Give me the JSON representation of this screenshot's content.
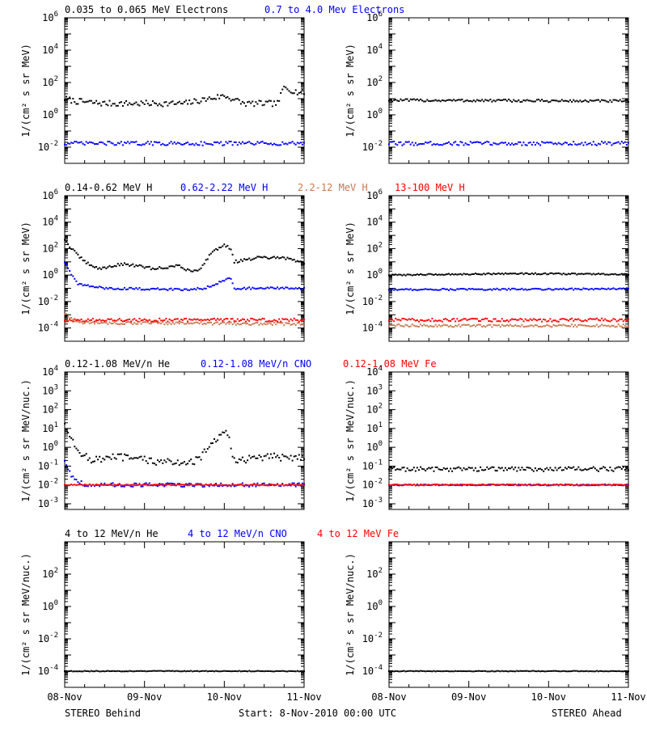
{
  "colors": {
    "black": "#000000",
    "blue": "#0000ff",
    "tan": "#c87850",
    "red": "#ff0000"
  },
  "footer": {
    "left": "STEREO Behind",
    "center": "Start:  8-Nov-2010 00:00 UTC",
    "right": "STEREO Ahead"
  },
  "chart_data": [
    {
      "type": "scatter",
      "id": "electrons-behind",
      "spacecraft": "STEREO Behind",
      "ylabel": "1/(cm² s sr MeV)",
      "yscale": "log",
      "ylim": [
        0.001,
        1000000
      ],
      "yticks": [
        {
          "v": 0.01,
          "e": "-2"
        },
        {
          "v": 1,
          "e": "0"
        },
        {
          "v": 100,
          "e": "2"
        },
        {
          "v": 10000,
          "e": "4"
        },
        {
          "v": 1000000,
          "e": "6"
        }
      ],
      "xlim": [
        "2010-11-08",
        "2010-11-11"
      ],
      "x_ticks": [
        "08-Nov",
        "09-Nov",
        "10-Nov",
        "11-Nov"
      ],
      "show_xtick_labels": false,
      "series": [
        {
          "name": "0.035 to 0.065 MeV Electrons",
          "color": "black",
          "noise": 0.18,
          "x": [
            "2010-11-08 00:00",
            "2010-11-08 03:00",
            "2010-11-08 12:00",
            "2010-11-09 00:00",
            "2010-11-09 12:00",
            "2010-11-10 00:00",
            "2010-11-10 06:00",
            "2010-11-10 12:00",
            "2010-11-10 16:00",
            "2010-11-10 18:00",
            "2010-11-10 22:00",
            "2010-11-11 00:00"
          ],
          "y": [
            10,
            7,
            5,
            5,
            5,
            15,
            5,
            5,
            5,
            50,
            25,
            25
          ]
        },
        {
          "name": "0.7 to 4.0 Mev Electrons",
          "color": "blue",
          "noise": 0.12,
          "x": [
            "2010-11-08 00:00",
            "2010-11-11 00:00"
          ],
          "y": [
            0.017,
            0.017
          ]
        }
      ]
    },
    {
      "type": "scatter",
      "id": "electrons-ahead",
      "spacecraft": "STEREO Ahead",
      "ylabel": "1/(cm² s sr MeV)",
      "yscale": "log",
      "ylim": [
        0.001,
        1000000
      ],
      "yticks": [
        {
          "v": 0.01,
          "e": "-2"
        },
        {
          "v": 1,
          "e": "0"
        },
        {
          "v": 100,
          "e": "2"
        },
        {
          "v": 10000,
          "e": "4"
        },
        {
          "v": 1000000,
          "e": "6"
        }
      ],
      "xlim": [
        "2010-11-08",
        "2010-11-11"
      ],
      "x_ticks": [
        "08-Nov",
        "09-Nov",
        "10-Nov",
        "11-Nov"
      ],
      "show_xtick_labels": false,
      "series": [
        {
          "color": "black",
          "noise": 0.08,
          "x": [
            "2010-11-08 00:00",
            "2010-11-11 00:00"
          ],
          "y": [
            8,
            7
          ]
        },
        {
          "color": "blue",
          "noise": 0.12,
          "x": [
            "2010-11-08 00:00",
            "2010-11-11 00:00"
          ],
          "y": [
            0.017,
            0.017
          ]
        }
      ]
    },
    {
      "type": "scatter",
      "id": "protons-behind",
      "spacecraft": "STEREO Behind",
      "ylabel": "1/(cm² s sr MeV)",
      "yscale": "log",
      "ylim": [
        1e-05,
        1000000
      ],
      "yticks": [
        {
          "v": 0.0001,
          "e": "-4"
        },
        {
          "v": 0.01,
          "e": "-2"
        },
        {
          "v": 1,
          "e": "0"
        },
        {
          "v": 100,
          "e": "2"
        },
        {
          "v": 10000,
          "e": "4"
        },
        {
          "v": 1000000,
          "e": "6"
        }
      ],
      "xlim": [
        "2010-11-08",
        "2010-11-11"
      ],
      "x_ticks": [
        "08-Nov",
        "09-Nov",
        "10-Nov",
        "11-Nov"
      ],
      "show_xtick_labels": false,
      "series": [
        {
          "name": "0.14-0.62 MeV H",
          "color": "black",
          "noise": 0.1,
          "x": [
            "2010-11-08 00:00",
            "2010-11-08 02:00",
            "2010-11-08 06:00",
            "2010-11-08 10:00",
            "2010-11-08 18:00",
            "2010-11-09 03:00",
            "2010-11-09 10:00",
            "2010-11-09 14:00",
            "2010-11-09 17:00",
            "2010-11-09 20:00",
            "2010-11-10 00:00",
            "2010-11-10 02:00",
            "2010-11-10 03:00",
            "2010-11-10 10:00",
            "2010-11-10 18:00",
            "2010-11-11 00:00"
          ],
          "y": [
            500,
            100,
            10,
            3,
            7,
            3,
            5,
            2,
            3,
            50,
            200,
            100,
            10,
            20,
            20,
            8
          ]
        },
        {
          "name": "0.62-2.22 MeV H",
          "color": "blue",
          "noise": 0.08,
          "x": [
            "2010-11-08 00:00",
            "2010-11-08 01:30",
            "2010-11-08 04:00",
            "2010-11-08 12:00",
            "2010-11-09 12:00",
            "2010-11-09 18:00",
            "2010-11-10 00:00",
            "2010-11-10 02:00",
            "2010-11-10 03:00",
            "2010-11-11 00:00"
          ],
          "y": [
            10,
            2,
            0.2,
            0.1,
            0.08,
            0.1,
            0.4,
            0.6,
            0.1,
            0.1
          ]
        },
        {
          "name": "2.2-12 MeV H",
          "color": "tan",
          "noise": 0.1,
          "x": [
            "2010-11-08 00:00",
            "2010-11-08 04:00",
            "2010-11-11 00:00"
          ],
          "y": [
            0.0012,
            0.00025,
            0.0002
          ]
        },
        {
          "name": "13-100 MeV H",
          "color": "red",
          "noise": 0.12,
          "x": [
            "2010-11-08 00:00",
            "2010-11-11 00:00"
          ],
          "y": [
            0.0004,
            0.0004
          ]
        }
      ]
    },
    {
      "type": "scatter",
      "id": "protons-ahead",
      "spacecraft": "STEREO Ahead",
      "ylabel": "1/(cm² s sr MeV)",
      "yscale": "log",
      "ylim": [
        1e-05,
        1000000
      ],
      "yticks": [
        {
          "v": 0.0001,
          "e": "-4"
        },
        {
          "v": 0.01,
          "e": "-2"
        },
        {
          "v": 1,
          "e": "0"
        },
        {
          "v": 100,
          "e": "2"
        },
        {
          "v": 10000,
          "e": "4"
        },
        {
          "v": 1000000,
          "e": "6"
        }
      ],
      "xlim": [
        "2010-11-08",
        "2010-11-11"
      ],
      "x_ticks": [
        "08-Nov",
        "09-Nov",
        "10-Nov",
        "11-Nov"
      ],
      "show_xtick_labels": false,
      "series": [
        {
          "color": "black",
          "noise": 0.05,
          "x": [
            "2010-11-08 00:00",
            "2010-11-09 12:00",
            "2010-11-10 12:00",
            "2010-11-11 00:00"
          ],
          "y": [
            1,
            1.3,
            1.2,
            1.1
          ]
        },
        {
          "color": "blue",
          "noise": 0.06,
          "x": [
            "2010-11-08 00:00",
            "2010-11-11 00:00"
          ],
          "y": [
            0.08,
            0.09
          ]
        },
        {
          "color": "tan",
          "noise": 0.1,
          "x": [
            "2010-11-08 00:00",
            "2010-11-11 00:00"
          ],
          "y": [
            0.00015,
            0.00015
          ]
        },
        {
          "color": "red",
          "noise": 0.12,
          "x": [
            "2010-11-08 00:00",
            "2010-11-11 00:00"
          ],
          "y": [
            0.0004,
            0.0004
          ]
        }
      ]
    },
    {
      "type": "scatter",
      "id": "ions-low-behind",
      "spacecraft": "STEREO Behind",
      "ylabel": "1/(cm² s sr MeV/nuc.)",
      "yscale": "log",
      "ylim": [
        0.0005,
        10000
      ],
      "yticks": [
        {
          "v": 0.001,
          "e": "-3"
        },
        {
          "v": 0.01,
          "e": "-2"
        },
        {
          "v": 0.1,
          "e": "-1"
        },
        {
          "v": 1,
          "e": "0"
        },
        {
          "v": 10,
          "e": "1"
        },
        {
          "v": 100,
          "e": "2"
        },
        {
          "v": 1000,
          "e": "3"
        },
        {
          "v": 10000,
          "e": "4"
        }
      ],
      "xlim": [
        "2010-11-08",
        "2010-11-11"
      ],
      "x_ticks": [
        "08-Nov",
        "09-Nov",
        "10-Nov",
        "11-Nov"
      ],
      "show_xtick_labels": false,
      "series": [
        {
          "name": "0.12-1.08 MeV/n He",
          "color": "black",
          "noise": 0.2,
          "x": [
            "2010-11-08 00:00",
            "2010-11-08 03:00",
            "2010-11-08 08:00",
            "2010-11-08 16:00",
            "2010-11-09 08:00",
            "2010-11-09 16:00",
            "2010-11-09 22:00",
            "2010-11-10 01:00",
            "2010-11-10 03:00",
            "2010-11-10 12:00",
            "2010-11-11 00:00"
          ],
          "y": [
            20,
            1,
            0.2,
            0.3,
            0.15,
            0.2,
            3,
            6,
            0.2,
            0.3,
            0.3
          ]
        },
        {
          "name": "0.12-1.08 MeV/n CNO",
          "color": "blue",
          "noise": 0.1,
          "x": [
            "2010-11-08 00:00",
            "2010-11-08 02:00",
            "2010-11-08 06:00",
            "2010-11-11 00:00"
          ],
          "y": [
            0.2,
            0.03,
            0.01,
            0.01
          ]
        },
        {
          "name": "0.12-1.08 MeV Fe",
          "color": "red",
          "noise": 0.03,
          "x": [
            "2010-11-08 00:00",
            "2010-11-11 00:00"
          ],
          "y": [
            0.01,
            0.01
          ]
        }
      ]
    },
    {
      "type": "scatter",
      "id": "ions-low-ahead",
      "spacecraft": "STEREO Ahead",
      "ylabel": "1/(cm² s sr MeV/nuc.)",
      "yscale": "log",
      "ylim": [
        0.0005,
        10000
      ],
      "yticks": [
        {
          "v": 0.001,
          "e": "-3"
        },
        {
          "v": 0.01,
          "e": "-2"
        },
        {
          "v": 0.1,
          "e": "-1"
        },
        {
          "v": 1,
          "e": "0"
        },
        {
          "v": 10,
          "e": "1"
        },
        {
          "v": 100,
          "e": "2"
        },
        {
          "v": 1000,
          "e": "3"
        },
        {
          "v": 10000,
          "e": "4"
        }
      ],
      "xlim": [
        "2010-11-08",
        "2010-11-11"
      ],
      "x_ticks": [
        "08-Nov",
        "09-Nov",
        "10-Nov",
        "11-Nov"
      ],
      "show_xtick_labels": false,
      "series": [
        {
          "color": "black",
          "noise": 0.12,
          "x": [
            "2010-11-08 00:00",
            "2010-11-11 00:00"
          ],
          "y": [
            0.07,
            0.07
          ]
        },
        {
          "color": "blue",
          "noise": 0.03,
          "x": [
            "2010-11-08 00:00",
            "2010-11-11 00:00"
          ],
          "y": [
            0.01,
            0.01
          ]
        },
        {
          "color": "red",
          "noise": 0.03,
          "x": [
            "2010-11-08 00:00",
            "2010-11-11 00:00"
          ],
          "y": [
            0.01,
            0.01
          ]
        }
      ]
    },
    {
      "type": "scatter",
      "id": "ions-high-behind",
      "spacecraft": "STEREO Behind",
      "ylabel": "1/(cm² s sr MeV/nuc.)",
      "yscale": "log",
      "ylim": [
        1e-05,
        10000
      ],
      "yticks": [
        {
          "v": 0.0001,
          "e": "-4"
        },
        {
          "v": 0.01,
          "e": "-2"
        },
        {
          "v": 1,
          "e": "0"
        },
        {
          "v": 100,
          "e": "2"
        }
      ],
      "xlim": [
        "2010-11-08",
        "2010-11-11"
      ],
      "x_ticks": [
        "08-Nov",
        "09-Nov",
        "10-Nov",
        "11-Nov"
      ],
      "show_xtick_labels": true,
      "series": [
        {
          "name": "4 to 12 MeV/n He",
          "color": "black",
          "noise": 0.02,
          "x": [
            "2010-11-08 00:00",
            "2010-11-11 00:00"
          ],
          "y": [
            0.0001,
            0.0001
          ]
        },
        {
          "name": "4 to 12 MeV/n CNO",
          "color": "blue"
        },
        {
          "name": "4 to 12 MeV Fe",
          "color": "red"
        }
      ]
    },
    {
      "type": "scatter",
      "id": "ions-high-ahead",
      "spacecraft": "STEREO Ahead",
      "ylabel": "1/(cm² s sr MeV/nuc.)",
      "yscale": "log",
      "ylim": [
        1e-05,
        10000
      ],
      "yticks": [
        {
          "v": 0.0001,
          "e": "-4"
        },
        {
          "v": 0.01,
          "e": "-2"
        },
        {
          "v": 1,
          "e": "0"
        },
        {
          "v": 100,
          "e": "2"
        }
      ],
      "xlim": [
        "2010-11-08",
        "2010-11-11"
      ],
      "x_ticks": [
        "08-Nov",
        "09-Nov",
        "10-Nov",
        "11-Nov"
      ],
      "show_xtick_labels": true,
      "series": [
        {
          "color": "black",
          "noise": 0.02,
          "x": [
            "2010-11-08 00:00",
            "2010-11-11 00:00"
          ],
          "y": [
            0.0001,
            0.0001
          ]
        }
      ]
    }
  ]
}
